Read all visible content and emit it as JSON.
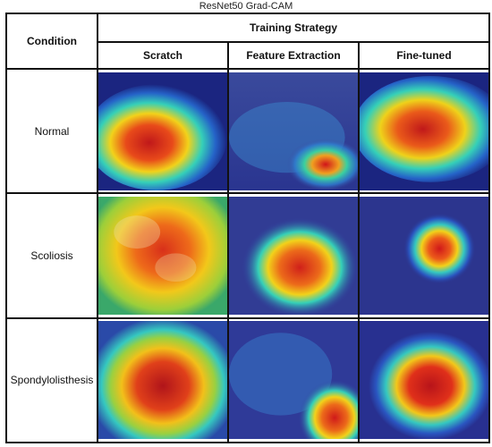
{
  "caption": "ResNet50 Grad-CAM",
  "header": {
    "condition": "Condition",
    "strategy": "Training Strategy",
    "columns": [
      "Scratch",
      "Feature Extraction",
      "Fine-tuned"
    ]
  },
  "rows": [
    {
      "label": "Normal"
    },
    {
      "label": "Scoliosis"
    },
    {
      "label": "Spondylolisthesis"
    }
  ],
  "colors": {
    "border": "#111111",
    "cam_low": "#1e2a8c",
    "cam_mid": "#2fd0c8",
    "cam_warm": "#f2d21a",
    "cam_high": "#e2231a"
  }
}
